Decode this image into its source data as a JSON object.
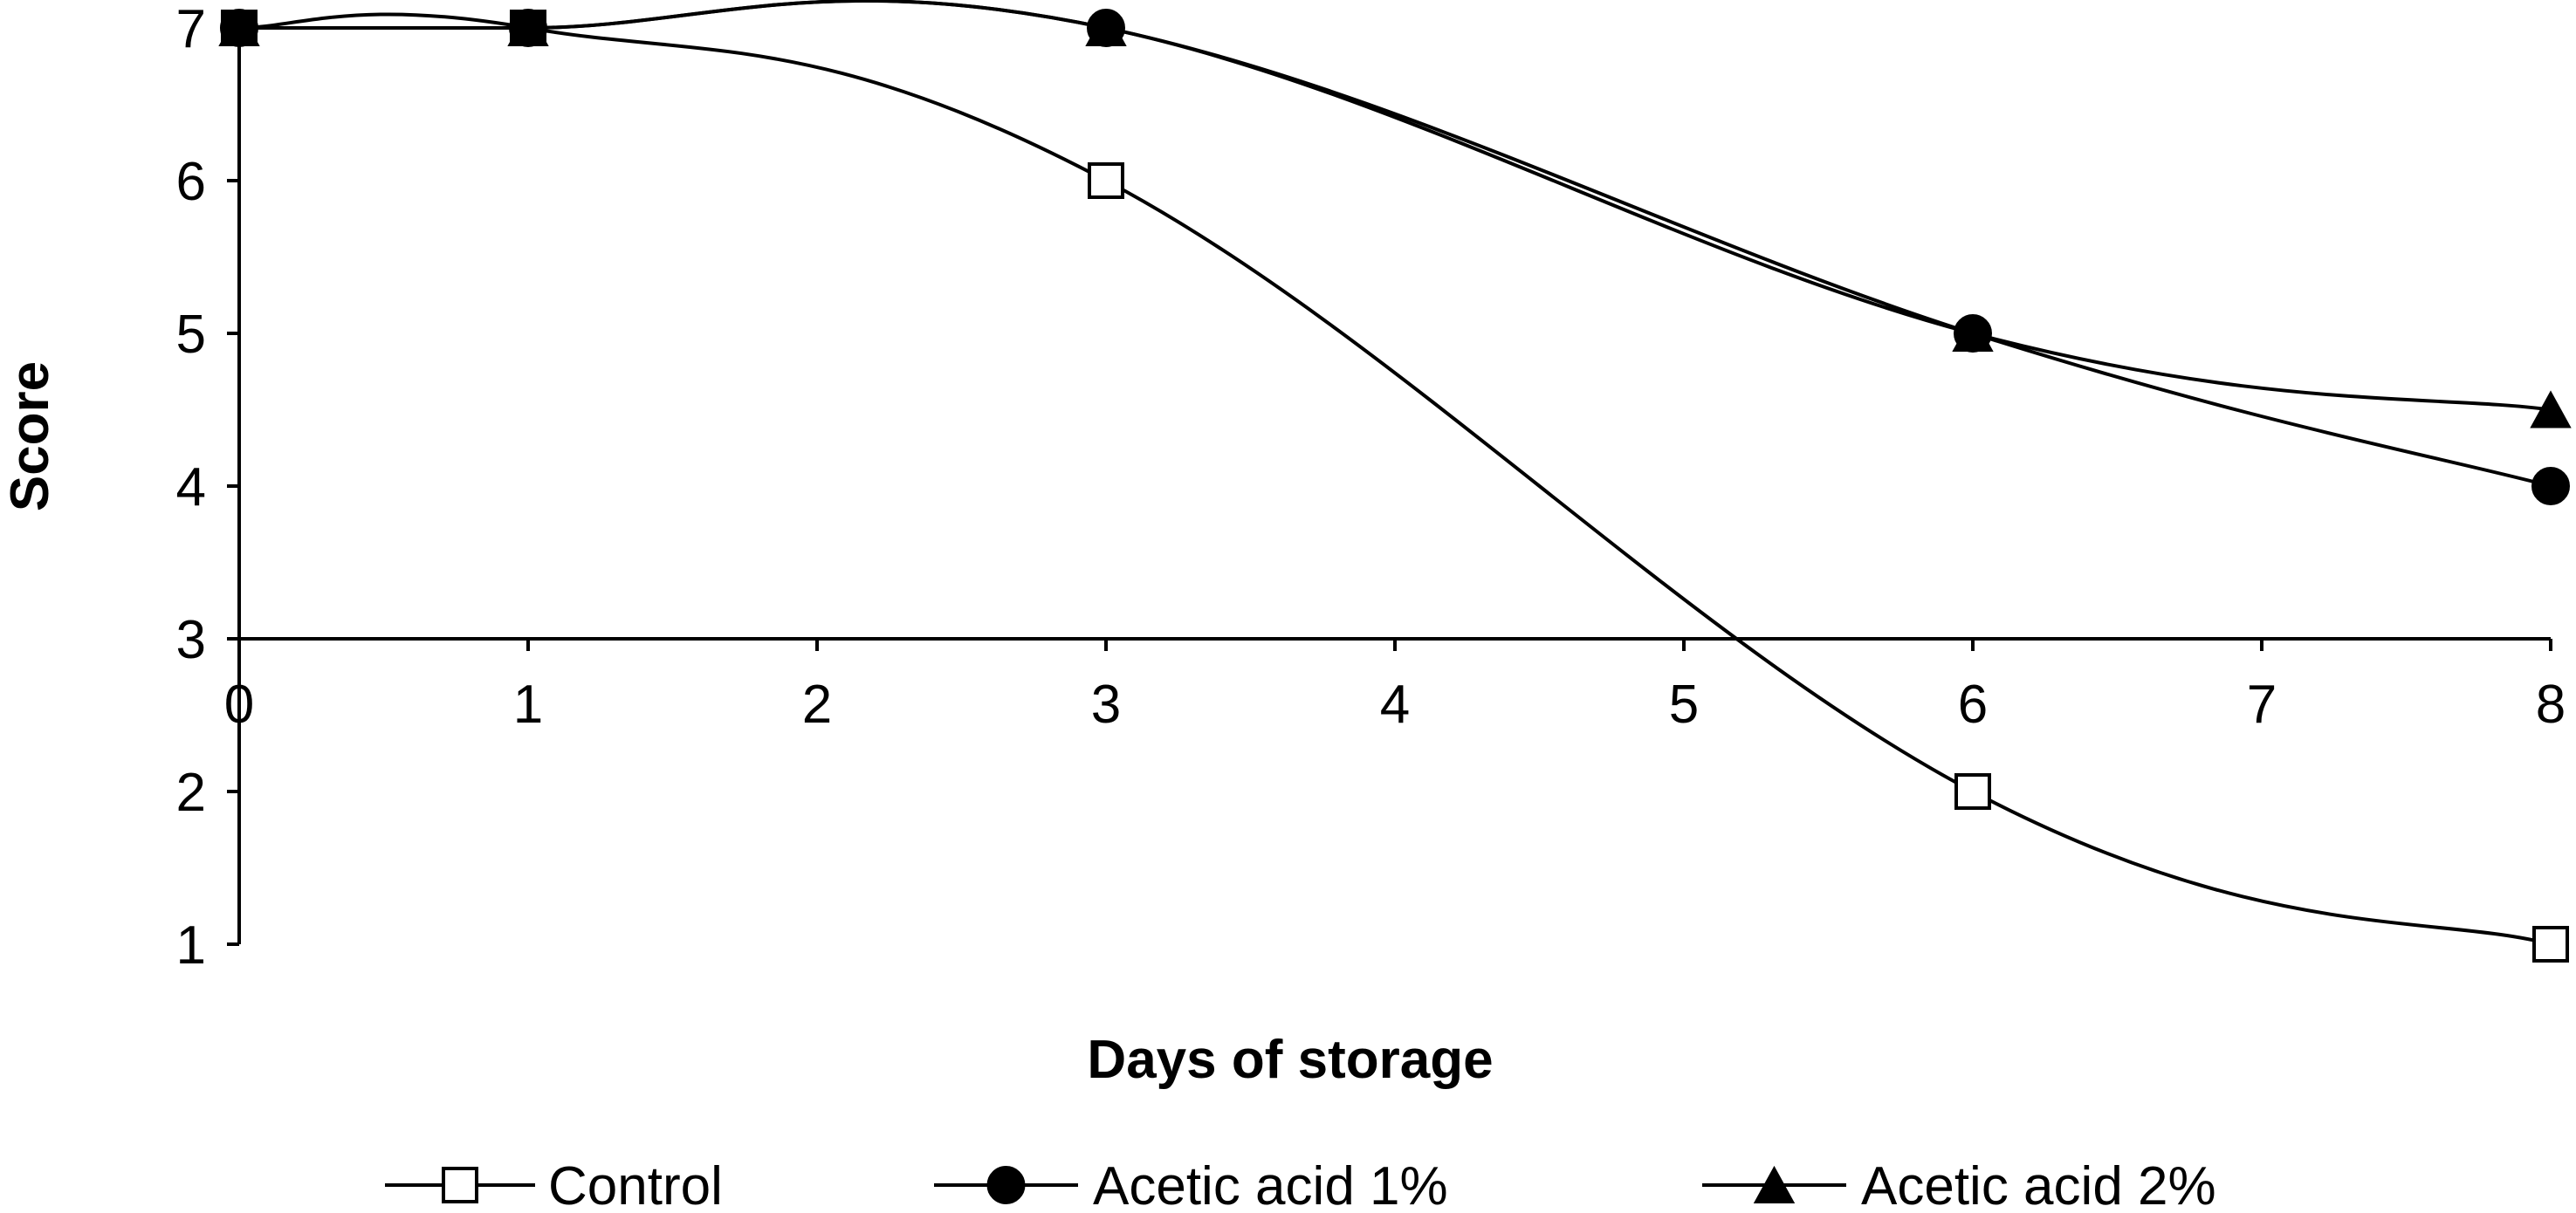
{
  "chart_data": {
    "type": "line",
    "title": "",
    "xlabel": "Days of storage",
    "ylabel": "Score",
    "x_ticks": [
      "0",
      "1",
      "2",
      "3",
      "4",
      "5",
      "6",
      "7",
      "8"
    ],
    "y_ticks": [
      "1",
      "2",
      "3",
      "4",
      "5",
      "6",
      "7"
    ],
    "xlim": [
      0,
      8
    ],
    "ylim": [
      1,
      7
    ],
    "x_axis_crosses_y_at": 3,
    "grid": false,
    "smoothed": true,
    "legend_position": "bottom",
    "series": [
      {
        "name": "Control",
        "marker": "square-open",
        "x": [
          0,
          1,
          3,
          6,
          8
        ],
        "y": [
          7,
          7,
          6,
          2,
          1
        ]
      },
      {
        "name": "Acetic acid 1%",
        "marker": "circle-filled",
        "x": [
          0,
          1,
          3,
          6,
          8
        ],
        "y": [
          7,
          7,
          7,
          5,
          4
        ]
      },
      {
        "name": "Acetic acid 2%",
        "marker": "triangle-filled",
        "x": [
          0,
          1,
          3,
          6,
          8
        ],
        "y": [
          7,
          7,
          7,
          5,
          4.5
        ]
      }
    ],
    "colors": {
      "line": "#000000",
      "marker_fill": "#000000",
      "open_marker_fill": "#ffffff"
    }
  }
}
